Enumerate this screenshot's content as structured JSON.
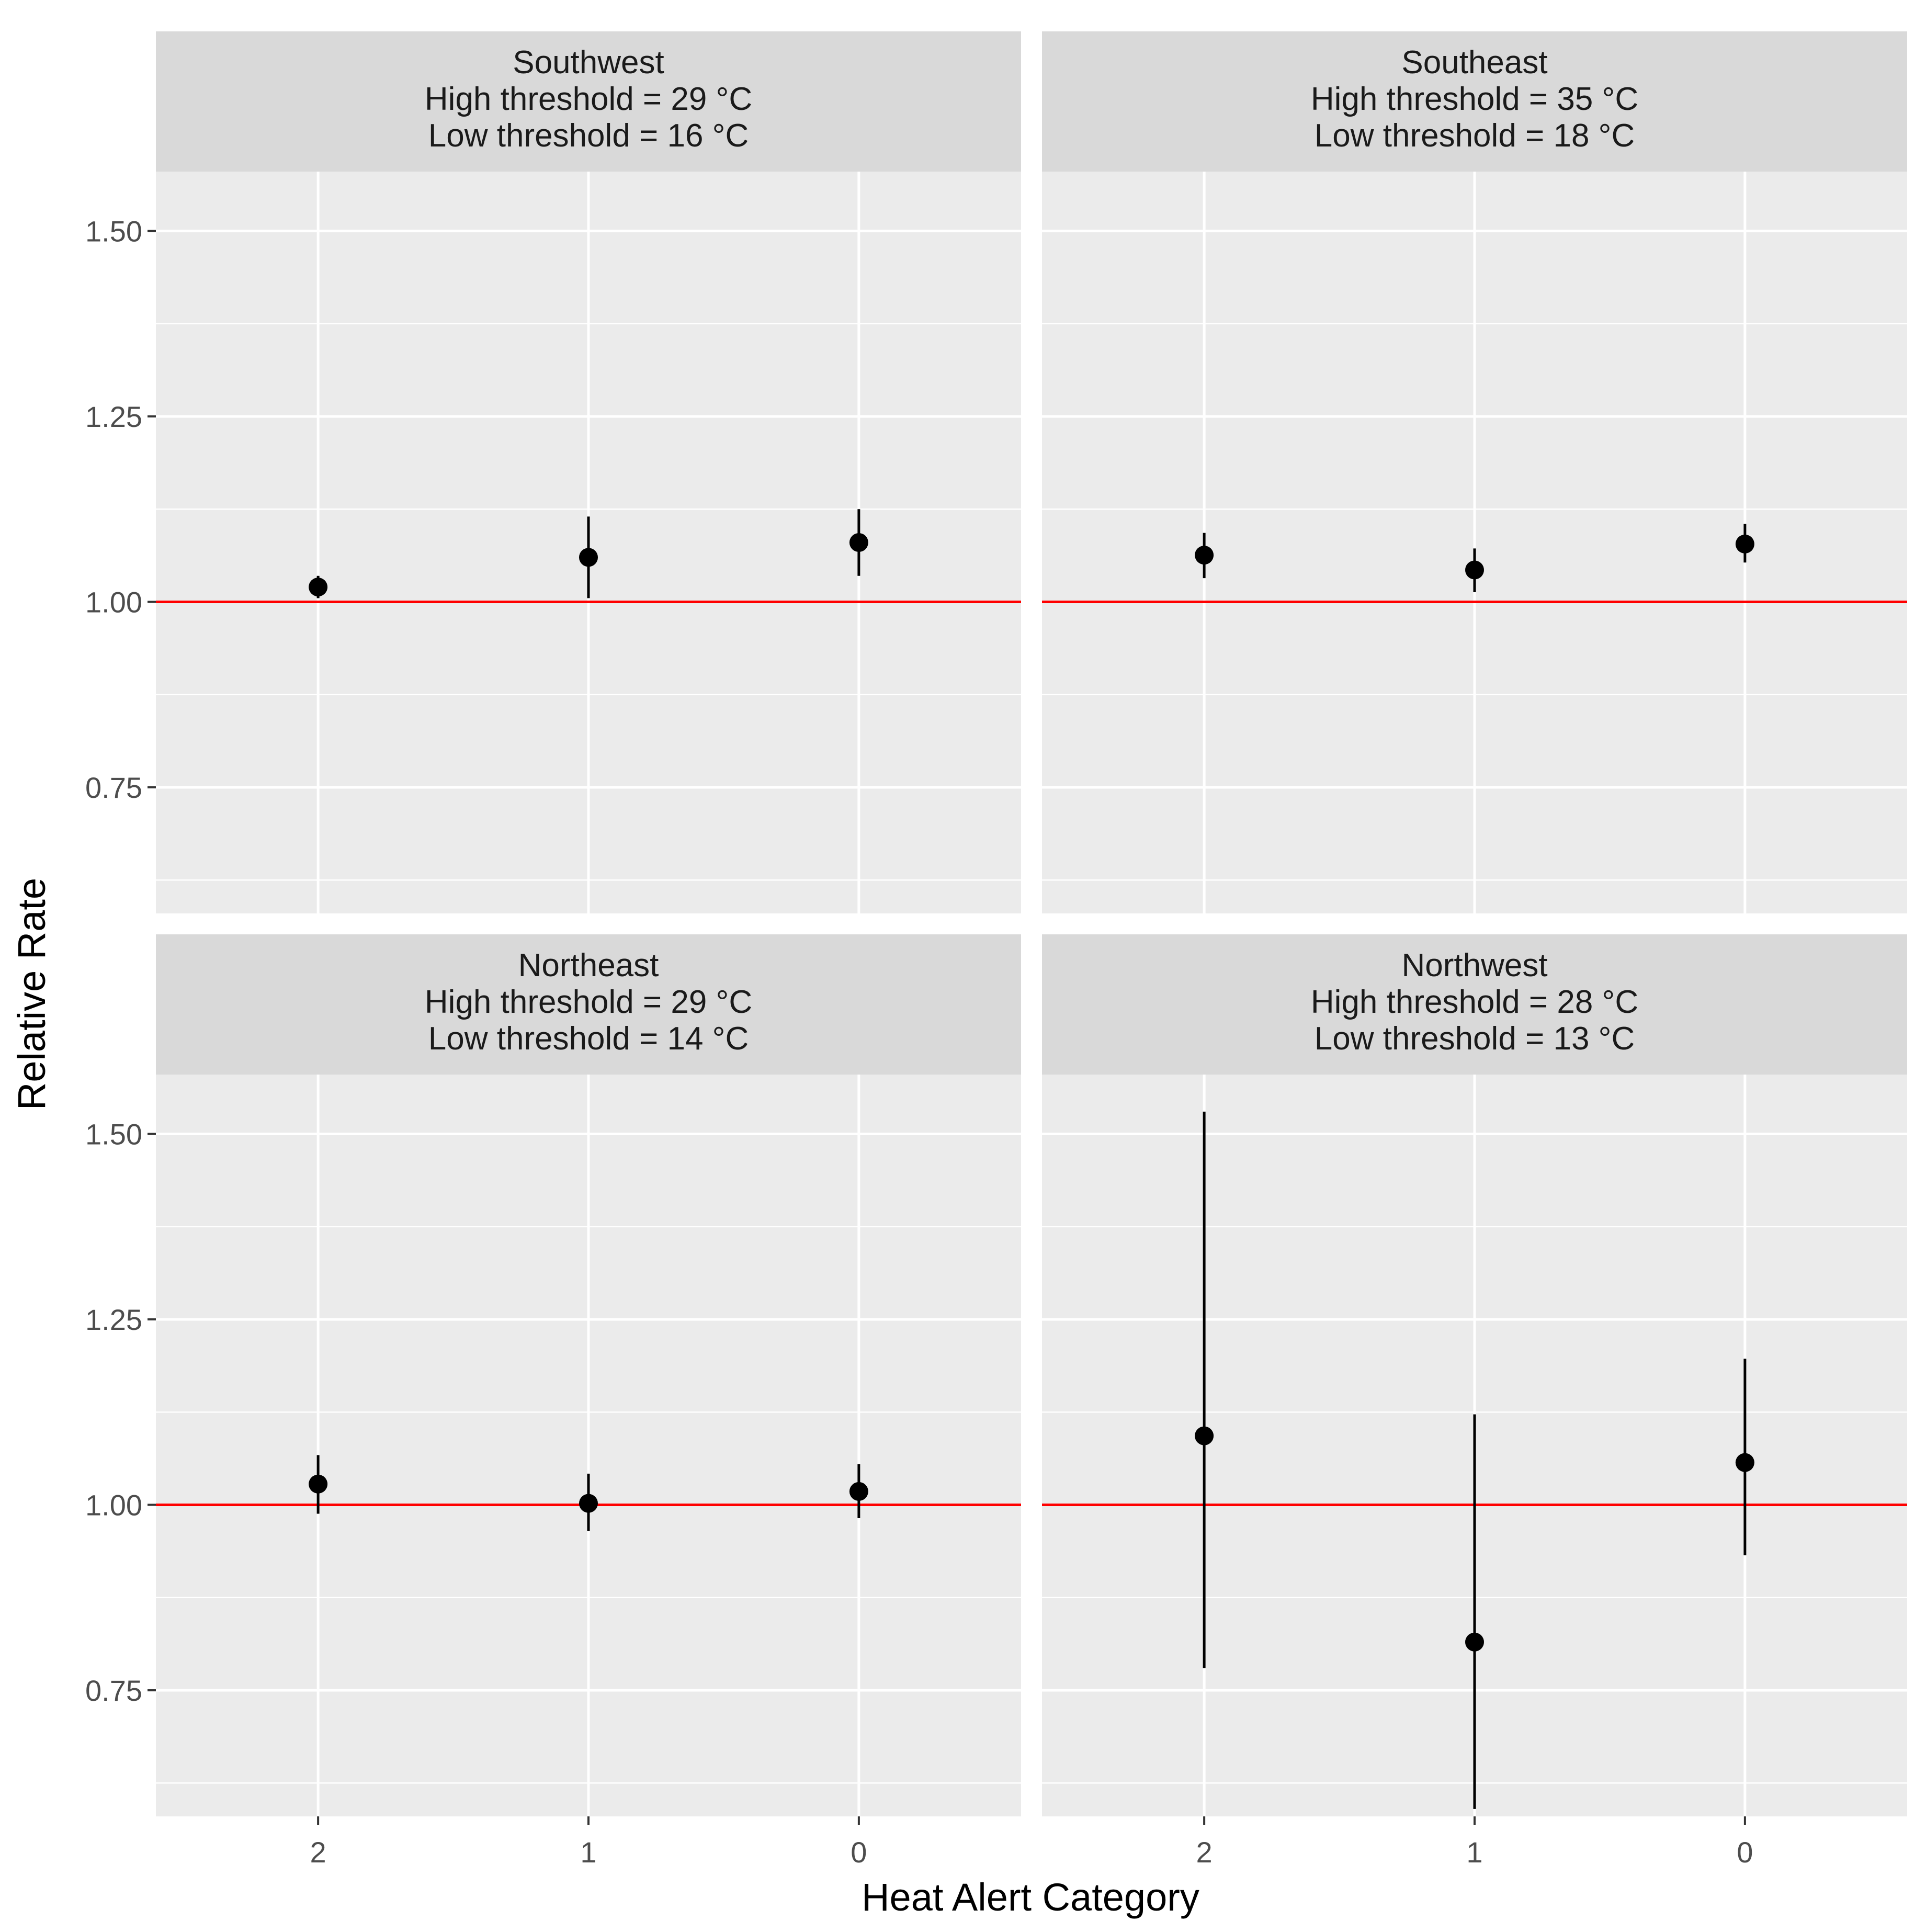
{
  "chart_data": {
    "type": "scatter",
    "subtype": "point-range facet grid",
    "xlabel": "Heat Alert Category",
    "ylabel": "Relative Rate",
    "categories": [
      "2",
      "1",
      "0"
    ],
    "ylim": [
      0.58,
      1.58
    ],
    "yticks": [
      0.75,
      1.0,
      1.25,
      1.5
    ],
    "ytick_labels": [
      "0.75",
      "1.00",
      "1.25",
      "1.50"
    ],
    "reference_line": {
      "value": 1.0,
      "color": "#ff0000"
    },
    "grid": true,
    "facets": [
      {
        "region": "Southwest",
        "high_threshold": "High threshold = 29 °C",
        "low_threshold": "Low threshold = 16 °C",
        "points": [
          {
            "category": "2",
            "estimate": 1.02,
            "lower": 1.005,
            "upper": 1.035
          },
          {
            "category": "1",
            "estimate": 1.06,
            "lower": 1.005,
            "upper": 1.115
          },
          {
            "category": "0",
            "estimate": 1.08,
            "lower": 1.035,
            "upper": 1.125
          }
        ]
      },
      {
        "region": "Southeast",
        "high_threshold": "High threshold = 35 °C",
        "low_threshold": "Low threshold = 18 °C",
        "points": [
          {
            "category": "2",
            "estimate": 1.063,
            "lower": 1.032,
            "upper": 1.093
          },
          {
            "category": "1",
            "estimate": 1.043,
            "lower": 1.013,
            "upper": 1.072
          },
          {
            "category": "0",
            "estimate": 1.078,
            "lower": 1.053,
            "upper": 1.105
          }
        ]
      },
      {
        "region": "Northeast",
        "high_threshold": "High threshold = 29 °C",
        "low_threshold": "Low threshold = 14 °C",
        "points": [
          {
            "category": "2",
            "estimate": 1.028,
            "lower": 0.988,
            "upper": 1.067
          },
          {
            "category": "1",
            "estimate": 1.002,
            "lower": 0.965,
            "upper": 1.042
          },
          {
            "category": "0",
            "estimate": 1.018,
            "lower": 0.982,
            "upper": 1.055
          }
        ]
      },
      {
        "region": "Northwest",
        "high_threshold": "High threshold = 28 °C",
        "low_threshold": "Low threshold = 13 °C",
        "points": [
          {
            "category": "2",
            "estimate": 1.093,
            "lower": 0.78,
            "upper": 1.53
          },
          {
            "category": "1",
            "estimate": 0.815,
            "lower": 0.59,
            "upper": 1.122
          },
          {
            "category": "0",
            "estimate": 1.057,
            "lower": 0.932,
            "upper": 1.197
          }
        ]
      }
    ]
  }
}
